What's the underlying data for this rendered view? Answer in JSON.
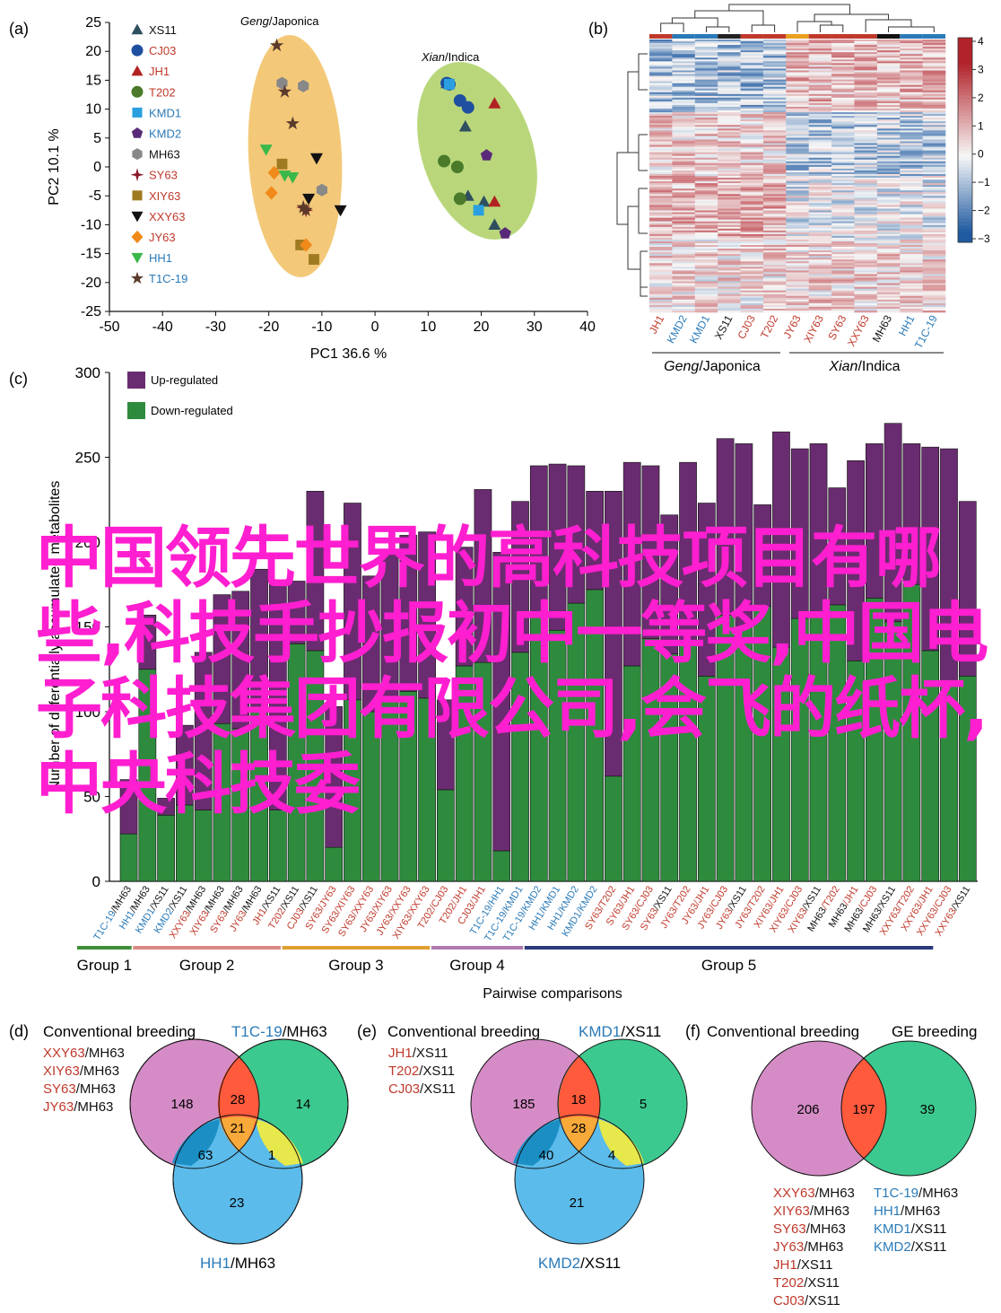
{
  "colors": {
    "japonica_text": "#c0392b",
    "indica_text": "#2a7ab8",
    "neutral_text": "#111111",
    "up": "#6a2c70",
    "down": "#2e8b3d",
    "ellipse_japonica": "#f3c979",
    "ellipse_indica": "#b9d77a",
    "venn_pink": "#d58cc6",
    "venn_green": "#3cc98f",
    "venn_blue": "#5bbbea",
    "venn_red": "#ff5a3c",
    "venn_orange": "#f7a93a",
    "venn_teal": "#1b8fc4",
    "venn_yellow": "#e7e84c"
  },
  "panel_a": {
    "label": "(a)",
    "group_labels": {
      "japonica_italic": "Geng",
      "japonica_rest": "/Japonica",
      "indica_italic": "Xian",
      "indica_rest": "/Indica"
    },
    "legend": [
      {
        "name": "XS11",
        "marker": "triangle-up",
        "color": "#2f4f5f",
        "text_color": "#111111"
      },
      {
        "name": "CJ03",
        "marker": "circle",
        "color": "#1f4fa0",
        "text_color": "#c0392b"
      },
      {
        "name": "JH1",
        "marker": "triangle-up",
        "color": "#b22222",
        "text_color": "#c0392b"
      },
      {
        "name": "T202",
        "marker": "circle",
        "color": "#4a7a2a",
        "text_color": "#c0392b"
      },
      {
        "name": "KMD1",
        "marker": "square",
        "color": "#2aa0e0",
        "text_color": "#2a7ab8"
      },
      {
        "name": "KMD2",
        "marker": "pentagon",
        "color": "#5a2a7a",
        "text_color": "#2a7ab8"
      },
      {
        "name": "MH63",
        "marker": "hexagon",
        "color": "#888888",
        "text_color": "#111111"
      },
      {
        "name": "SY63",
        "marker": "star4",
        "color": "#8b1a2a",
        "text_color": "#c0392b"
      },
      {
        "name": "XIY63",
        "marker": "square",
        "color": "#a07a20",
        "text_color": "#c0392b"
      },
      {
        "name": "XXY63",
        "marker": "triangle-down",
        "color": "#111111",
        "text_color": "#c0392b"
      },
      {
        "name": "JY63",
        "marker": "diamond",
        "color": "#f08a1a",
        "text_color": "#c0392b"
      },
      {
        "name": "HH1",
        "marker": "triangle-down",
        "color": "#3cb84a",
        "text_color": "#2a7ab8"
      },
      {
        "name": "T1C-19",
        "marker": "star",
        "color": "#5a3a2a",
        "text_color": "#2a7ab8"
      }
    ]
  },
  "panel_b": {
    "label": "(b)",
    "columns": [
      {
        "name": "JH1",
        "color": "#c0392b"
      },
      {
        "name": "KMD2",
        "color": "#2a7ab8"
      },
      {
        "name": "KMD1",
        "color": "#2a7ab8"
      },
      {
        "name": "XS11",
        "color": "#111111"
      },
      {
        "name": "CJ03",
        "color": "#c0392b"
      },
      {
        "name": "T202",
        "color": "#c0392b"
      },
      {
        "name": "JY63",
        "color": "#c0392b"
      },
      {
        "name": "XIY63",
        "color": "#c0392b"
      },
      {
        "name": "SY63",
        "color": "#c0392b"
      },
      {
        "name": "XXY63",
        "color": "#c0392b"
      },
      {
        "name": "MH63",
        "color": "#111111"
      },
      {
        "name": "HH1",
        "color": "#2a7ab8"
      },
      {
        "name": "T1C-19",
        "color": "#2a7ab8"
      }
    ],
    "top_bar_colors": [
      "#c0392b",
      "#2a7ab8",
      "#2a7ab8",
      "#222222",
      "#c0392b",
      "#c0392b",
      "#e8a020",
      "#c0392b",
      "#c0392b",
      "#c0392b",
      "#111111",
      "#2a7ab8",
      "#2a7ab8"
    ],
    "group_japonica_italic": "Geng",
    "group_japonica_rest": "/Japonica",
    "group_indica_italic": "Xian",
    "group_indica_rest": "/Indica",
    "colorbar_ticks": [
      "4",
      "3",
      "2",
      "1",
      "0",
      "−1",
      "−2",
      "−3"
    ]
  },
  "panel_c": {
    "label": "(c)",
    "legend": [
      {
        "name": "Up-regulated",
        "color": "#6a2c70"
      },
      {
        "name": "Down-regulated",
        "color": "#2e8b3d"
      }
    ],
    "groups": [
      {
        "name": "Group 1",
        "color": "#3f8f3a"
      },
      {
        "name": "Group 2",
        "color": "#d98a86"
      },
      {
        "name": "Group 3",
        "color": "#e0a030"
      },
      {
        "name": "Group 4",
        "color": "#b07ab0"
      },
      {
        "name": "Group 5",
        "color": "#2a3a7a"
      }
    ]
  },
  "chart_data": [
    {
      "type": "scatter",
      "xlabel": "PC1 36.6 %",
      "ylabel": "PC2 10.1 %",
      "xlim": [
        -50,
        40
      ],
      "ylim": [
        -25,
        25
      ],
      "xticks": [
        "-50",
        "-40",
        "-30",
        "-20",
        "-10",
        "0",
        "10",
        "20",
        "30",
        "40"
      ],
      "yticks": [
        "25",
        "20",
        "15",
        "10",
        "5",
        "0",
        "-5",
        "-10",
        "-15",
        "-20",
        "-25"
      ],
      "series": [
        {
          "name": "XS11",
          "points": [
            [
              13.5,
              14.5
            ],
            [
              17,
              7
            ],
            [
              17.5,
              -5
            ],
            [
              20.5,
              -6
            ],
            [
              22.5,
              -10
            ]
          ]
        },
        {
          "name": "CJ03",
          "points": [
            [
              13.5,
              14.5
            ],
            [
              16,
              11.5
            ],
            [
              17.5,
              10.3
            ],
            [
              14,
              14.3
            ]
          ]
        },
        {
          "name": "JH1",
          "points": [
            [
              22.5,
              11
            ],
            [
              22.5,
              -6
            ]
          ]
        },
        {
          "name": "T202",
          "points": [
            [
              13,
              1
            ],
            [
              15.5,
              0
            ],
            [
              16,
              -5.5
            ]
          ]
        },
        {
          "name": "KMD1",
          "points": [
            [
              14,
              14.3
            ],
            [
              19.5,
              -7.5
            ]
          ]
        },
        {
          "name": "KMD2",
          "points": [
            [
              21,
              2
            ],
            [
              24.5,
              -11.5
            ]
          ]
        },
        {
          "name": "MH63",
          "points": [
            [
              -17.5,
              14.5
            ],
            [
              -13.5,
              14
            ],
            [
              -10,
              -4
            ]
          ]
        },
        {
          "name": "SY63",
          "points": [
            [
              -13.5,
              -7
            ],
            [
              -13,
              -7.5
            ]
          ]
        },
        {
          "name": "XIY63",
          "points": [
            [
              -17.5,
              0.5
            ],
            [
              -14,
              -13.5
            ],
            [
              -11.5,
              -16
            ]
          ]
        },
        {
          "name": "XXY63",
          "points": [
            [
              -11,
              1.5
            ],
            [
              -12.5,
              -5.5
            ],
            [
              -6.5,
              -7.5
            ]
          ]
        },
        {
          "name": "JY63",
          "points": [
            [
              -19,
              -1
            ],
            [
              -19.5,
              -4.5
            ],
            [
              -13,
              -13.5
            ]
          ]
        },
        {
          "name": "HH1",
          "points": [
            [
              -20.5,
              3
            ],
            [
              -17,
              -1.5
            ],
            [
              -15.5,
              -1.8
            ]
          ]
        },
        {
          "name": "T1C-19",
          "points": [
            [
              -18.5,
              21
            ],
            [
              -17,
              13
            ],
            [
              -15.5,
              7.5
            ],
            [
              -13.5,
              -7
            ],
            [
              -13,
              -7.5
            ]
          ]
        }
      ],
      "groups": [
        {
          "name": "Geng/Japonica",
          "center": [
            -14.5,
            2
          ],
          "semi_axes": [
            10.5,
            21
          ]
        },
        {
          "name": "Xian/Indica",
          "center": [
            18,
            2
          ],
          "semi_axes": [
            10,
            13
          ]
        }
      ]
    },
    {
      "type": "heatmap",
      "columns": [
        "JH1",
        "KMD2",
        "KMD1",
        "XS11",
        "CJ03",
        "T202",
        "JY63",
        "XIY63",
        "SY63",
        "XXY63",
        "MH63",
        "HH1",
        "T1C-19"
      ],
      "color_range": [
        -3,
        4
      ],
      "groups": [
        "Geng/Japonica",
        "Xian/Indica"
      ]
    },
    {
      "type": "bar",
      "stacked": true,
      "xlabel": "Pairwise comparisons",
      "ylabel": "Number of differentially accumulated metabolites",
      "ylim": [
        0,
        300
      ],
      "yticks": [
        "0",
        "50",
        "100",
        "150",
        "200",
        "250",
        "300"
      ],
      "categories": [
        "T1C-19/MH63",
        "HH1/MH63",
        "KMD1/XS11",
        "KMD2/XS11",
        "XXY63/MH63",
        "XIY63/MH63",
        "SY63/MH63",
        "JY63/MH63",
        "JH1/XS11",
        "T202/XS11",
        "CJ03/XS11",
        "SY63/JY63",
        "SY63/XIY63",
        "SY63/XXY63",
        "JY63/XIY63",
        "JY63/XXY63",
        "XIY63/XXY63",
        "T202/CJ03",
        "T202/JH1",
        "CJ03/JH1",
        "T1C-19/HH1",
        "T1C-19/KMD1",
        "T1C-19/KMD2",
        "HH1/KMD1",
        "HH1/KMD2",
        "KMD1/KMD2",
        "SY63/T202",
        "SY63/JH1",
        "SY63/CJ03",
        "SY63/XS11",
        "JY63/T202",
        "JY63/JH1",
        "JY63/CJ03",
        "JY63/XS11",
        "JY63/T202",
        "XIY63/JH1",
        "XIY63/CJ03",
        "XIY63/XS11",
        "MH63/T202",
        "MH63/JH1",
        "MH63/CJ03",
        "MH63/XS11",
        "XXY63/T202",
        "XXY63/JH1",
        "XXY63/CJ03",
        "XXY63/XS11"
      ],
      "category_colors": [
        [
          "#2a7ab8",
          "#111111"
        ],
        [
          "#2a7ab8",
          "#111111"
        ],
        [
          "#2a7ab8",
          "#111111"
        ],
        [
          "#2a7ab8",
          "#111111"
        ],
        [
          "#c0392b",
          "#111111"
        ],
        [
          "#c0392b",
          "#111111"
        ],
        [
          "#c0392b",
          "#111111"
        ],
        [
          "#c0392b",
          "#111111"
        ],
        [
          "#c0392b",
          "#111111"
        ],
        [
          "#c0392b",
          "#111111"
        ],
        [
          "#c0392b",
          "#111111"
        ],
        [
          "#c0392b",
          "#c0392b"
        ],
        [
          "#c0392b",
          "#c0392b"
        ],
        [
          "#c0392b",
          "#c0392b"
        ],
        [
          "#c0392b",
          "#c0392b"
        ],
        [
          "#c0392b",
          "#c0392b"
        ],
        [
          "#c0392b",
          "#c0392b"
        ],
        [
          "#c0392b",
          "#c0392b"
        ],
        [
          "#c0392b",
          "#c0392b"
        ],
        [
          "#c0392b",
          "#c0392b"
        ],
        [
          "#2a7ab8",
          "#2a7ab8"
        ],
        [
          "#2a7ab8",
          "#2a7ab8"
        ],
        [
          "#2a7ab8",
          "#2a7ab8"
        ],
        [
          "#2a7ab8",
          "#2a7ab8"
        ],
        [
          "#2a7ab8",
          "#2a7ab8"
        ],
        [
          "#2a7ab8",
          "#2a7ab8"
        ],
        [
          "#c0392b",
          "#c0392b"
        ],
        [
          "#c0392b",
          "#c0392b"
        ],
        [
          "#c0392b",
          "#c0392b"
        ],
        [
          "#c0392b",
          "#111111"
        ],
        [
          "#c0392b",
          "#c0392b"
        ],
        [
          "#c0392b",
          "#c0392b"
        ],
        [
          "#c0392b",
          "#c0392b"
        ],
        [
          "#c0392b",
          "#111111"
        ],
        [
          "#c0392b",
          "#c0392b"
        ],
        [
          "#c0392b",
          "#c0392b"
        ],
        [
          "#c0392b",
          "#c0392b"
        ],
        [
          "#c0392b",
          "#111111"
        ],
        [
          "#111111",
          "#c0392b"
        ],
        [
          "#111111",
          "#c0392b"
        ],
        [
          "#111111",
          "#c0392b"
        ],
        [
          "#111111",
          "#111111"
        ],
        [
          "#c0392b",
          "#c0392b"
        ],
        [
          "#c0392b",
          "#c0392b"
        ],
        [
          "#c0392b",
          "#c0392b"
        ],
        [
          "#c0392b",
          "#111111"
        ]
      ],
      "series": [
        {
          "name": "Down-regulated",
          "values": [
            28,
            125,
            39,
            45,
            42,
            93,
            90,
            100,
            42,
            140,
            136,
            20,
            107,
            100,
            108,
            112,
            108,
            54,
            127,
            129,
            18,
            135,
            158,
            148,
            164,
            172,
            62,
            127,
            143,
            134,
            139,
            121,
            157,
            150,
            162,
            138,
            155,
            158,
            163,
            130,
            167,
            153,
            175,
            136,
            115,
            121
          ]
        },
        {
          "name": "Up-regulated",
          "values": [
            32,
            32,
            10,
            47,
            93,
            76,
            81,
            84,
            135,
            37,
            94,
            83,
            116,
            80,
            86,
            92,
            98,
            53,
            70,
            102,
            176,
            89,
            87,
            98,
            81,
            58,
            168,
            120,
            102,
            82,
            108,
            102,
            104,
            108,
            60,
            127,
            100,
            100,
            69,
            118,
            91,
            117,
            83,
            120,
            140,
            103
          ]
        }
      ],
      "groups": [
        {
          "name": "Group 1",
          "from": 0,
          "to": 2
        },
        {
          "name": "Group 2",
          "from": 3,
          "to": 10
        },
        {
          "name": "Group 3",
          "from": 11,
          "to": 18
        },
        {
          "name": "Group 4",
          "from": 19,
          "to": 23
        },
        {
          "name": "Group 5",
          "from": 24,
          "to": 45
        }
      ]
    }
  ],
  "venn_d": {
    "label": "(d)",
    "title_left": "Conventional breeding",
    "title_right_colored": "T1C-19",
    "title_right_rest": "/MH63",
    "pairs": [
      {
        "a": "XXY63",
        "b": "/MH63"
      },
      {
        "a": "XIY63",
        "b": "/MH63"
      },
      {
        "a": "SY63",
        "b": "/MH63"
      },
      {
        "a": "JY63",
        "b": "/MH63"
      }
    ],
    "bottom_colored": "HH1",
    "bottom_rest": "/MH63",
    "values": {
      "a_only": "148",
      "b_only": "14",
      "c_only": "23",
      "ab": "28",
      "ac": "63",
      "bc": "1",
      "abc": "21"
    }
  },
  "venn_e": {
    "label": "(e)",
    "title_left": "Conventional breeding",
    "title_right_colored": "KMD1",
    "title_right_rest": "/XS11",
    "pairs": [
      {
        "a": "JH1",
        "b": "/XS11"
      },
      {
        "a": "T202",
        "b": "/XS11"
      },
      {
        "a": "CJ03",
        "b": "/XS11"
      }
    ],
    "bottom_colored": "KMD2",
    "bottom_rest": "/XS11",
    "values": {
      "a_only": "185",
      "b_only": "5",
      "c_only": "21",
      "ab": "18",
      "ac": "40",
      "bc": "4",
      "abc": "28"
    }
  },
  "venn_f": {
    "label": "(f)",
    "title_left": "Conventional breeding",
    "title_right": "GE breeding",
    "values": {
      "left": "206",
      "overlap": "197",
      "right": "39"
    },
    "left_list": [
      {
        "a": "XXY63",
        "b": "/MH63"
      },
      {
        "a": "XIY63",
        "b": "/MH63"
      },
      {
        "a": "SY63",
        "b": "/MH63"
      },
      {
        "a": "JY63",
        "b": "/MH63"
      },
      {
        "a": "JH1",
        "b": "/XS11"
      },
      {
        "a": "T202",
        "b": "/XS11"
      },
      {
        "a": "CJ03",
        "b": "/XS11"
      }
    ],
    "right_list": [
      {
        "a": "T1C-19",
        "b": "/MH63"
      },
      {
        "a": "HH1",
        "b": "/MH63"
      },
      {
        "a": "KMD1",
        "b": "/XS11"
      },
      {
        "a": "KMD2",
        "b": "/XS11"
      }
    ]
  },
  "overlay_text": "中国领先世界的高科技项目有哪些,科技手抄报初中一等奖,中国电子科技集团有限公司,会飞的纸杯,中央科技委"
}
